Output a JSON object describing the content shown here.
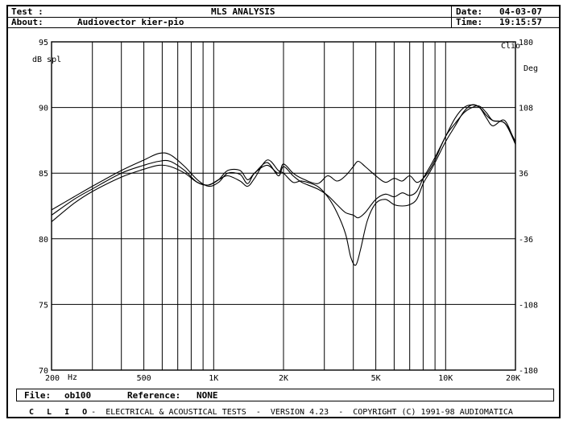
{
  "header": {
    "test_label": "Test :",
    "title": "MLS ANALYSIS",
    "about_label": "About:",
    "about_value": "Audiovector kier-pio",
    "date_label": "Date:",
    "date_value": "04-03-07",
    "time_label": "Time:",
    "time_value": "19:15:57"
  },
  "footer": {
    "file_label": "File:",
    "file_value": "ob100",
    "reference_label": "Reference:",
    "reference_value": "NONE",
    "clio": "C L I O",
    "credits": "-  ELECTRICAL & ACOUSTICAL TESTS  -  VERSION 4.23  -  COPYRIGHT (C) 1991-98 AUDIOMATICA"
  },
  "chart_data": {
    "type": "line",
    "xscale": "log",
    "xlim": [
      200,
      20000
    ],
    "ylim": [
      70,
      95
    ],
    "y2lim": [
      -180,
      180
    ],
    "grid": true,
    "x_tick_labels": [
      {
        "value": 200,
        "label": "200"
      },
      {
        "value": 500,
        "label": "500"
      },
      {
        "value": 1000,
        "label": "1K"
      },
      {
        "value": 2000,
        "label": "2K"
      },
      {
        "value": 5000,
        "label": "5K"
      },
      {
        "value": 10000,
        "label": "10K"
      },
      {
        "value": 20000,
        "label": "20K"
      }
    ],
    "x_unit": "Hz",
    "y_ticks": [
      95,
      90,
      85,
      80,
      75,
      70
    ],
    "y2_ticks": [
      180,
      108,
      36,
      -36,
      -108,
      -180
    ],
    "ylabel": "dB spl",
    "y2label": "Deg",
    "corner_label": "Clio",
    "series": [
      {
        "color": "#000000",
        "points": [
          [
            200,
            82.2
          ],
          [
            250,
            83.2
          ],
          [
            300,
            84.0
          ],
          [
            400,
            85.2
          ],
          [
            500,
            86.0
          ],
          [
            580,
            86.5
          ],
          [
            650,
            86.4
          ],
          [
            750,
            85.5
          ],
          [
            850,
            84.5
          ],
          [
            950,
            84.0
          ],
          [
            1050,
            84.3
          ],
          [
            1150,
            85.0
          ],
          [
            1300,
            84.9
          ],
          [
            1400,
            84.2
          ],
          [
            1500,
            85.0
          ],
          [
            1700,
            85.6
          ],
          [
            1900,
            85.0
          ],
          [
            2000,
            85.7
          ],
          [
            2200,
            85.0
          ],
          [
            2400,
            84.6
          ],
          [
            2800,
            84.2
          ],
          [
            3100,
            84.8
          ],
          [
            3400,
            84.4
          ],
          [
            3700,
            84.8
          ],
          [
            4000,
            85.5
          ],
          [
            4200,
            85.9
          ],
          [
            4500,
            85.5
          ],
          [
            5000,
            84.8
          ],
          [
            5500,
            84.3
          ],
          [
            6000,
            84.6
          ],
          [
            6500,
            84.4
          ],
          [
            7000,
            84.8
          ],
          [
            7500,
            84.3
          ],
          [
            8000,
            84.6
          ],
          [
            8500,
            85.2
          ],
          [
            9000,
            86.0
          ],
          [
            10000,
            87.8
          ],
          [
            11000,
            88.8
          ],
          [
            12000,
            89.6
          ],
          [
            13000,
            90.0
          ],
          [
            14000,
            90.1
          ],
          [
            15000,
            89.6
          ],
          [
            16000,
            89.0
          ],
          [
            18000,
            88.8
          ],
          [
            20000,
            87.4
          ]
        ]
      },
      {
        "color": "#000000",
        "points": [
          [
            200,
            81.8
          ],
          [
            250,
            83.0
          ],
          [
            300,
            83.8
          ],
          [
            400,
            85.0
          ],
          [
            500,
            85.6
          ],
          [
            580,
            85.9
          ],
          [
            650,
            85.9
          ],
          [
            750,
            85.2
          ],
          [
            850,
            84.3
          ],
          [
            950,
            84.1
          ],
          [
            1050,
            84.5
          ],
          [
            1150,
            85.2
          ],
          [
            1300,
            85.2
          ],
          [
            1400,
            84.5
          ],
          [
            1500,
            85.0
          ],
          [
            1700,
            85.8
          ],
          [
            1900,
            84.8
          ],
          [
            2000,
            85.5
          ],
          [
            2200,
            84.8
          ],
          [
            2400,
            84.3
          ],
          [
            2800,
            83.8
          ],
          [
            3100,
            83.3
          ],
          [
            3400,
            82.6
          ],
          [
            3700,
            82.0
          ],
          [
            4000,
            81.8
          ],
          [
            4200,
            81.6
          ],
          [
            4500,
            82.0
          ],
          [
            5000,
            83.0
          ],
          [
            5500,
            83.4
          ],
          [
            6000,
            83.2
          ],
          [
            6500,
            83.5
          ],
          [
            7000,
            83.3
          ],
          [
            7500,
            83.6
          ],
          [
            8000,
            84.6
          ],
          [
            8500,
            85.4
          ],
          [
            9000,
            86.2
          ],
          [
            10000,
            87.8
          ],
          [
            11000,
            89.2
          ],
          [
            12000,
            90.0
          ],
          [
            13000,
            90.2
          ],
          [
            14000,
            90.0
          ],
          [
            15000,
            89.4
          ],
          [
            16000,
            89.0
          ],
          [
            18000,
            88.8
          ],
          [
            20000,
            87.2
          ]
        ]
      },
      {
        "color": "#000000",
        "points": [
          [
            200,
            81.3
          ],
          [
            250,
            82.7
          ],
          [
            300,
            83.6
          ],
          [
            400,
            84.7
          ],
          [
            500,
            85.3
          ],
          [
            580,
            85.6
          ],
          [
            650,
            85.5
          ],
          [
            750,
            85.0
          ],
          [
            850,
            84.3
          ],
          [
            950,
            84.1
          ],
          [
            1050,
            84.5
          ],
          [
            1150,
            84.8
          ],
          [
            1300,
            84.4
          ],
          [
            1400,
            84.0
          ],
          [
            1500,
            84.6
          ],
          [
            1700,
            86.0
          ],
          [
            1900,
            85.2
          ],
          [
            2000,
            85.0
          ],
          [
            2200,
            84.3
          ],
          [
            2400,
            84.4
          ],
          [
            2800,
            84.0
          ],
          [
            3100,
            83.2
          ],
          [
            3400,
            82.0
          ],
          [
            3700,
            80.4
          ],
          [
            3900,
            78.6
          ],
          [
            4100,
            78.0
          ],
          [
            4300,
            79.2
          ],
          [
            4600,
            81.4
          ],
          [
            5000,
            82.7
          ],
          [
            5500,
            83.0
          ],
          [
            6000,
            82.6
          ],
          [
            6500,
            82.5
          ],
          [
            7000,
            82.6
          ],
          [
            7500,
            83.0
          ],
          [
            8000,
            84.2
          ],
          [
            8500,
            85.0
          ],
          [
            9000,
            85.8
          ],
          [
            10000,
            87.4
          ],
          [
            11000,
            88.6
          ],
          [
            12000,
            89.7
          ],
          [
            13000,
            90.2
          ],
          [
            14000,
            90.0
          ],
          [
            15000,
            89.2
          ],
          [
            16000,
            88.6
          ],
          [
            18000,
            89.0
          ],
          [
            20000,
            87.2
          ]
        ]
      }
    ]
  }
}
